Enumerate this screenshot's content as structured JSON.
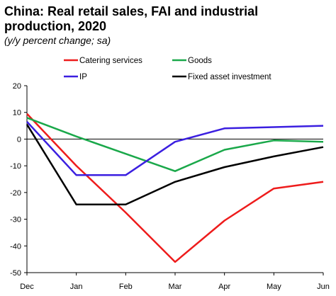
{
  "chart_data": {
    "type": "line",
    "title": "China: Real retail sales, FAI and industrial production, 2020",
    "subtitle": "(y/y percent change; sa)",
    "categories": [
      "Dec",
      "Jan",
      "Feb",
      "Mar",
      "Apr",
      "May",
      "Jun"
    ],
    "ylim": [
      -50,
      20
    ],
    "yticks": [
      20,
      10,
      0,
      -10,
      -20,
      -30,
      -40,
      -50
    ],
    "zero_line": true,
    "grid": false,
    "legend_position": "top",
    "series": [
      {
        "name": "Catering services",
        "color": "#ee1c1c",
        "values": [
          9.5,
          -10,
          -27.5,
          -46,
          -30.5,
          -18.5,
          -16
        ]
      },
      {
        "name": "Goods",
        "color": "#1aa84a",
        "values": [
          8,
          1,
          -5.5,
          -12,
          -4,
          -0.5,
          -1
        ]
      },
      {
        "name": "IP",
        "color": "#3b1fe0",
        "values": [
          6.5,
          -13.5,
          -13.5,
          -1,
          4,
          4.5,
          5
        ]
      },
      {
        "name": "Fixed asset investment",
        "color": "#000000",
        "values": [
          5.5,
          -24.5,
          -24.5,
          -16,
          -10.5,
          -6.5,
          -3
        ]
      }
    ]
  }
}
